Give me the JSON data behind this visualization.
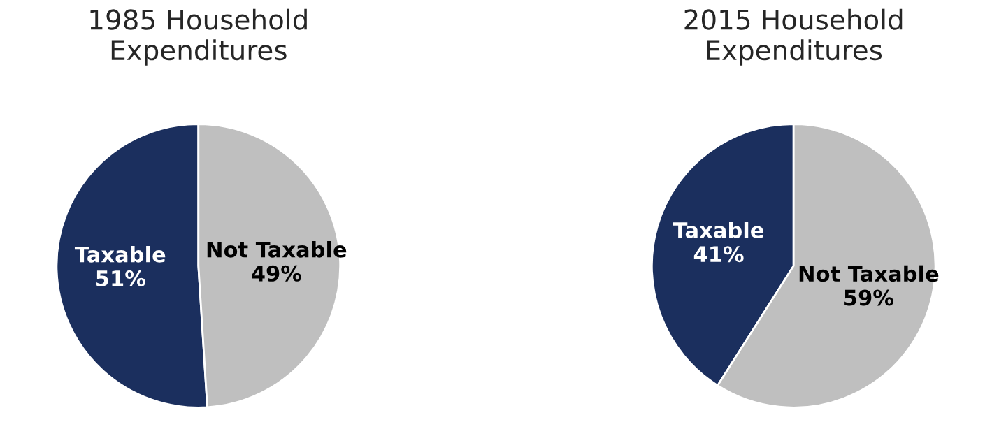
{
  "chart_data": [
    {
      "type": "pie",
      "title": "1985 Household Expenditures",
      "categories": [
        "Taxable",
        "Not Taxable"
      ],
      "values": [
        51,
        49
      ],
      "value_labels": [
        "51%",
        "49%"
      ],
      "colors": [
        "#1b2f5e",
        "#bfbfbf"
      ]
    },
    {
      "type": "pie",
      "title": "2015 Household Expenditures",
      "categories": [
        "Taxable",
        "Not Taxable"
      ],
      "values": [
        41,
        59
      ],
      "value_labels": [
        "41%",
        "59%"
      ],
      "colors": [
        "#1b2f5e",
        "#bfbfbf"
      ]
    }
  ]
}
